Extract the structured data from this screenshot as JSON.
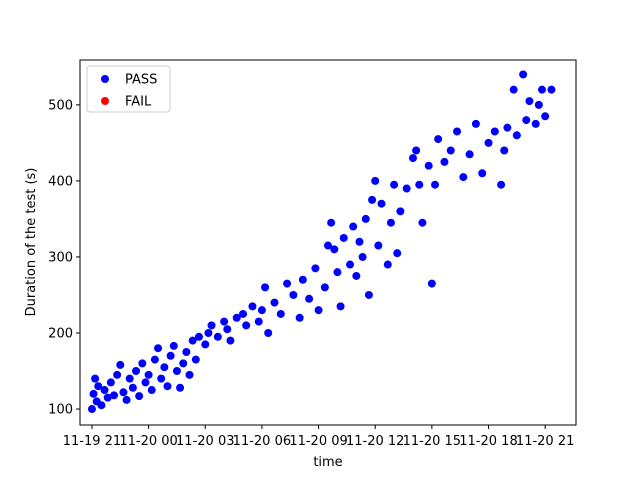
{
  "chart_data": {
    "type": "scatter",
    "xlabel": "time",
    "ylabel": "Duration of the test (s)",
    "xlim": [
      "11-19 20:22",
      "11-20 22:38"
    ],
    "xticks": [
      "11-19 21",
      "11-20 00",
      "11-20 03",
      "11-20 06",
      "11-20 09",
      "11-20 12",
      "11-20 15",
      "11-20 18",
      "11-20 21"
    ],
    "ylim": [
      79,
      559
    ],
    "yticks": [
      100,
      200,
      300,
      400,
      500
    ],
    "grid": false,
    "legend": "upper left",
    "series": [
      {
        "name": "PASS",
        "color": "#0000ff",
        "x": [
          "11-19 21:00",
          "11-19 21:05",
          "11-19 21:10",
          "11-19 21:15",
          "11-19 21:20",
          "11-19 21:30",
          "11-19 21:40",
          "11-19 21:50",
          "11-19 22:00",
          "11-19 22:10",
          "11-19 22:20",
          "11-19 22:30",
          "11-19 22:40",
          "11-19 22:50",
          "11-19 23:00",
          "11-19 23:10",
          "11-19 23:20",
          "11-19 23:30",
          "11-19 23:40",
          "11-19 23:50",
          "11-20 00:00",
          "11-20 00:10",
          "11-20 00:20",
          "11-20 00:30",
          "11-20 00:40",
          "11-20 00:50",
          "11-20 01:00",
          "11-20 01:10",
          "11-20 01:20",
          "11-20 01:30",
          "11-20 01:40",
          "11-20 01:50",
          "11-20 02:00",
          "11-20 02:10",
          "11-20 02:20",
          "11-20 02:30",
          "11-20 02:40",
          "11-20 03:00",
          "11-20 03:10",
          "11-20 03:20",
          "11-20 03:40",
          "11-20 04:00",
          "11-20 04:10",
          "11-20 04:20",
          "11-20 04:40",
          "11-20 05:00",
          "11-20 05:10",
          "11-20 05:30",
          "11-20 05:50",
          "11-20 06:00",
          "11-20 06:10",
          "11-20 06:20",
          "11-20 06:40",
          "11-20 07:00",
          "11-20 07:20",
          "11-20 07:40",
          "11-20 08:00",
          "11-20 08:10",
          "11-20 08:30",
          "11-20 08:50",
          "11-20 09:00",
          "11-20 09:20",
          "11-20 09:30",
          "11-20 09:40",
          "11-20 09:50",
          "11-20 10:00",
          "11-20 10:10",
          "11-20 10:20",
          "11-20 10:40",
          "11-20 10:50",
          "11-20 11:00",
          "11-20 11:10",
          "11-20 11:20",
          "11-20 11:30",
          "11-20 11:40",
          "11-20 11:50",
          "11-20 12:00",
          "11-20 12:10",
          "11-20 12:20",
          "11-20 12:40",
          "11-20 12:50",
          "11-20 13:00",
          "11-20 13:10",
          "11-20 13:20",
          "11-20 13:40",
          "11-20 14:00",
          "11-20 14:10",
          "11-20 14:20",
          "11-20 14:30",
          "11-20 14:50",
          "11-20 15:00",
          "11-20 15:10",
          "11-20 15:20",
          "11-20 15:40",
          "11-20 16:00",
          "11-20 16:20",
          "11-20 16:40",
          "11-20 17:00",
          "11-20 17:20",
          "11-20 17:40",
          "11-20 18:00",
          "11-20 18:20",
          "11-20 18:40",
          "11-20 18:50",
          "11-20 19:00",
          "11-20 19:20",
          "11-20 19:30",
          "11-20 19:50",
          "11-20 20:00",
          "11-20 20:10",
          "11-20 20:30",
          "11-20 20:40",
          "11-20 20:50",
          "11-20 21:00",
          "11-20 21:20"
        ],
        "values": [
          100,
          120,
          140,
          110,
          130,
          105,
          125,
          115,
          135,
          118,
          145,
          158,
          122,
          112,
          140,
          128,
          150,
          117,
          160,
          135,
          145,
          125,
          165,
          180,
          140,
          155,
          130,
          170,
          183,
          150,
          128,
          160,
          175,
          145,
          190,
          165,
          195,
          185,
          200,
          210,
          195,
          215,
          205,
          190,
          220,
          225,
          210,
          235,
          215,
          230,
          260,
          200,
          240,
          225,
          265,
          250,
          220,
          270,
          245,
          285,
          230,
          260,
          315,
          345,
          310,
          280,
          235,
          325,
          290,
          340,
          275,
          320,
          300,
          350,
          250,
          375,
          400,
          315,
          370,
          290,
          345,
          395,
          305,
          360,
          390,
          430,
          440,
          395,
          345,
          420,
          265,
          395,
          455,
          425,
          440,
          465,
          405,
          435,
          475,
          410,
          450,
          465,
          395,
          440,
          470,
          520,
          460,
          540,
          480,
          505,
          475,
          500,
          520,
          485,
          520
        ]
      },
      {
        "name": "FAIL",
        "color": "#ff0000",
        "x": [],
        "values": []
      }
    ]
  }
}
